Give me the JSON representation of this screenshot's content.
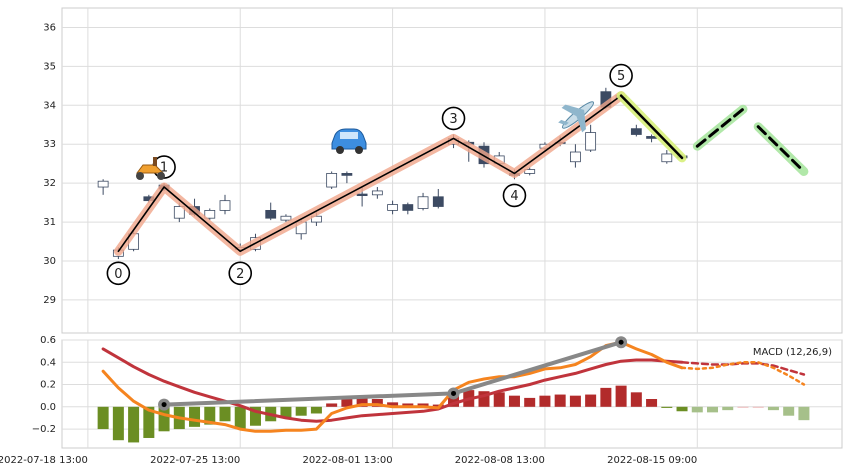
{
  "chart_data": [
    {
      "type": "candlestick",
      "x": [
        0,
        1,
        2,
        3,
        4,
        5,
        6,
        7,
        8,
        9,
        10,
        11,
        12,
        13,
        14,
        15,
        16,
        17,
        18,
        19,
        20,
        21,
        22,
        23,
        24,
        25,
        26,
        27,
        28,
        29,
        30,
        31,
        32,
        33,
        34,
        35,
        36,
        37,
        38,
        39,
        40,
        41,
        42,
        43,
        44,
        45,
        46
      ],
      "open": [
        31.9,
        30.12,
        30.3,
        31.65,
        31.95,
        31.1,
        31.4,
        31.1,
        31.3,
        30.3,
        30.3,
        31.3,
        31.05,
        30.7,
        31.0,
        31.9,
        32.25,
        31.72,
        31.7,
        31.3,
        31.45,
        31.35,
        31.65,
        33.0,
        33.05,
        32.95,
        32.5,
        32.25,
        32.25,
        32.9,
        33.05,
        32.55,
        32.85,
        34.35,
        34.2,
        33.4,
        33.2,
        32.55,
        32.7,
        null,
        null,
        null,
        null,
        null,
        null,
        null,
        null
      ],
      "high": [
        32.1,
        30.35,
        30.8,
        31.7,
        32.0,
        31.5,
        31.6,
        31.35,
        31.7,
        30.45,
        30.7,
        31.5,
        31.2,
        31.05,
        31.25,
        32.3,
        32.3,
        31.9,
        31.9,
        31.55,
        31.5,
        31.75,
        31.85,
        33.25,
        33.1,
        33.05,
        32.8,
        32.35,
        32.4,
        33.05,
        33.2,
        33.0,
        33.5,
        34.45,
        34.35,
        33.5,
        33.25,
        32.85,
        32.75,
        null,
        null,
        null,
        null,
        null,
        null,
        null,
        null
      ],
      "low": [
        31.7,
        30.05,
        30.25,
        31.5,
        31.8,
        31.0,
        31.15,
        31.05,
        31.2,
        30.25,
        30.25,
        31.05,
        31.0,
        30.55,
        30.9,
        31.85,
        32.0,
        31.4,
        31.6,
        31.2,
        31.2,
        31.3,
        31.35,
        32.9,
        32.55,
        32.4,
        32.45,
        32.1,
        32.2,
        32.8,
        32.95,
        32.4,
        32.8,
        33.9,
        34.1,
        33.2,
        33.05,
        32.5,
        32.6,
        null,
        null,
        null,
        null,
        null,
        null,
        null,
        null
      ],
      "close": [
        32.05,
        30.28,
        30.7,
        31.55,
        31.85,
        31.4,
        31.2,
        31.3,
        31.55,
        30.35,
        30.6,
        31.1,
        31.15,
        31.0,
        31.15,
        32.25,
        32.2,
        31.68,
        31.8,
        31.45,
        31.3,
        31.65,
        31.4,
        33.15,
        33.0,
        32.5,
        32.7,
        32.2,
        32.35,
        33.0,
        33.02,
        32.8,
        33.3,
        33.95,
        34.25,
        33.25,
        33.15,
        32.75,
        32.65,
        null,
        null,
        null,
        null,
        null,
        null,
        null,
        null
      ],
      "up_color": "#ffffff",
      "down_color": "#3d4b63",
      "edge_color": "#3d4b63",
      "waves": {
        "labels": [
          "0",
          "1",
          "2",
          "3",
          "4",
          "5"
        ],
        "x": [
          1,
          4,
          9,
          23,
          27,
          34
        ],
        "y": [
          30.25,
          31.9,
          30.25,
          33.15,
          32.25,
          34.25
        ],
        "color": "#000000",
        "glow": "#f0a58a"
      },
      "trend": {
        "x": [
          34,
          38
        ],
        "y": [
          34.25,
          32.65
        ],
        "color": "#000000",
        "glow": "#d7f07a"
      },
      "projections": [
        {
          "x": [
            39,
            42
          ],
          "y": [
            32.95,
            33.9
          ]
        },
        {
          "x": [
            43,
            46
          ],
          "y": [
            33.45,
            32.3
          ]
        }
      ],
      "projection_color": "#000000",
      "projection_glow": "#a8e6a0",
      "xlim": [
        -2.7,
        48.5
      ],
      "xticks": [
        -1,
        9,
        19,
        29,
        39
      ],
      "ylim": [
        28.15,
        36.5
      ],
      "yticks": [
        29,
        30,
        31,
        32,
        33,
        34,
        35,
        36
      ],
      "grid": true
    },
    {
      "type": "macd",
      "title": "MACD (12,26,9)",
      "x": [
        0,
        1,
        2,
        3,
        4,
        5,
        6,
        7,
        8,
        9,
        10,
        11,
        12,
        13,
        14,
        15,
        16,
        17,
        18,
        19,
        20,
        21,
        22,
        23,
        24,
        25,
        26,
        27,
        28,
        29,
        30,
        31,
        32,
        33,
        34,
        35,
        36,
        37,
        38,
        39,
        40,
        41,
        42,
        43,
        44,
        45,
        46
      ],
      "histogram": [
        -0.2,
        -0.3,
        -0.32,
        -0.28,
        -0.22,
        -0.2,
        -0.18,
        -0.16,
        -0.13,
        -0.2,
        -0.17,
        -0.13,
        -0.1,
        -0.08,
        -0.06,
        0.03,
        0.07,
        0.08,
        0.07,
        0.04,
        0.03,
        0.03,
        0.02,
        0.12,
        0.15,
        0.14,
        0.13,
        0.1,
        0.08,
        0.1,
        0.11,
        0.1,
        0.11,
        0.17,
        0.19,
        0.13,
        0.07,
        -0.01,
        -0.04,
        null,
        null,
        null,
        null,
        null,
        null,
        null,
        null
      ],
      "histogram_projection": [
        null,
        null,
        null,
        null,
        null,
        null,
        null,
        null,
        null,
        null,
        null,
        null,
        null,
        null,
        null,
        null,
        null,
        null,
        null,
        null,
        null,
        null,
        null,
        null,
        null,
        null,
        null,
        null,
        null,
        null,
        null,
        null,
        null,
        null,
        null,
        null,
        null,
        null,
        null,
        -0.05,
        -0.05,
        -0.03,
        0.0,
        0.0,
        -0.03,
        -0.08,
        -0.12
      ],
      "hist_colors": {
        "positive": "#b22b2b",
        "negative": "#6b8e23",
        "positive_projection": "#e8a8a8",
        "negative_projection": "#a6c08a"
      },
      "macd": [
        0.32,
        0.17,
        0.05,
        -0.03,
        -0.07,
        -0.1,
        -0.12,
        -0.14,
        -0.16,
        -0.2,
        -0.22,
        -0.22,
        -0.21,
        -0.21,
        -0.2,
        -0.06,
        -0.01,
        0.02,
        0.02,
        0.0,
        0.0,
        0.0,
        -0.01,
        0.15,
        0.22,
        0.25,
        0.27,
        0.27,
        0.3,
        0.34,
        0.35,
        0.38,
        0.45,
        0.55,
        0.58,
        0.52,
        0.47,
        0.4,
        0.35,
        null,
        null,
        null,
        null,
        null,
        null,
        null,
        null
      ],
      "macd_projection": [
        null,
        null,
        null,
        null,
        null,
        null,
        null,
        null,
        null,
        null,
        null,
        null,
        null,
        null,
        null,
        null,
        null,
        null,
        null,
        null,
        null,
        null,
        null,
        null,
        null,
        null,
        null,
        null,
        null,
        null,
        null,
        null,
        null,
        null,
        null,
        null,
        null,
        null,
        0.35,
        0.34,
        0.35,
        0.38,
        0.4,
        0.4,
        0.35,
        0.28,
        0.2
      ],
      "signal": [
        0.52,
        0.44,
        0.36,
        0.29,
        0.23,
        0.18,
        0.13,
        0.09,
        0.05,
        0.01,
        -0.04,
        -0.07,
        -0.1,
        -0.12,
        -0.13,
        -0.12,
        -0.1,
        -0.08,
        -0.07,
        -0.06,
        -0.05,
        -0.04,
        -0.02,
        0.03,
        0.07,
        0.1,
        0.14,
        0.17,
        0.2,
        0.24,
        0.27,
        0.3,
        0.34,
        0.38,
        0.41,
        0.42,
        0.42,
        0.41,
        0.4,
        null,
        null,
        null,
        null,
        null,
        null,
        null,
        null
      ],
      "signal_projection": [
        null,
        null,
        null,
        null,
        null,
        null,
        null,
        null,
        null,
        null,
        null,
        null,
        null,
        null,
        null,
        null,
        null,
        null,
        null,
        null,
        null,
        null,
        null,
        null,
        null,
        null,
        null,
        null,
        null,
        null,
        null,
        null,
        null,
        null,
        null,
        null,
        null,
        null,
        0.4,
        0.39,
        0.38,
        0.38,
        0.39,
        0.39,
        0.37,
        0.33,
        0.29
      ],
      "macd_color": "#f5841f",
      "signal_color": "#c0343c",
      "wave_line": {
        "x": [
          4,
          23,
          34
        ],
        "y": [
          0.02,
          0.12,
          0.58
        ],
        "color": "#888888"
      },
      "xlim": [
        -2.7,
        48.5
      ],
      "xticks": [
        {
          "value": -1,
          "label": "2022-07-18 13:00"
        },
        {
          "value": 9,
          "label": "2022-07-25 13:00"
        },
        {
          "value": 19,
          "label": "2022-08-01 13:00"
        },
        {
          "value": 29,
          "label": "2022-08-08 13:00"
        },
        {
          "value": 39,
          "label": "2022-08-15 09:00"
        }
      ],
      "ylim": [
        -0.37,
        0.6
      ],
      "yticks": [
        {
          "value": -0.2,
          "label": "−0.2"
        },
        {
          "value": 0,
          "label": "0.0"
        },
        0.2,
        0.4,
        0.6
      ],
      "grid": true
    }
  ]
}
